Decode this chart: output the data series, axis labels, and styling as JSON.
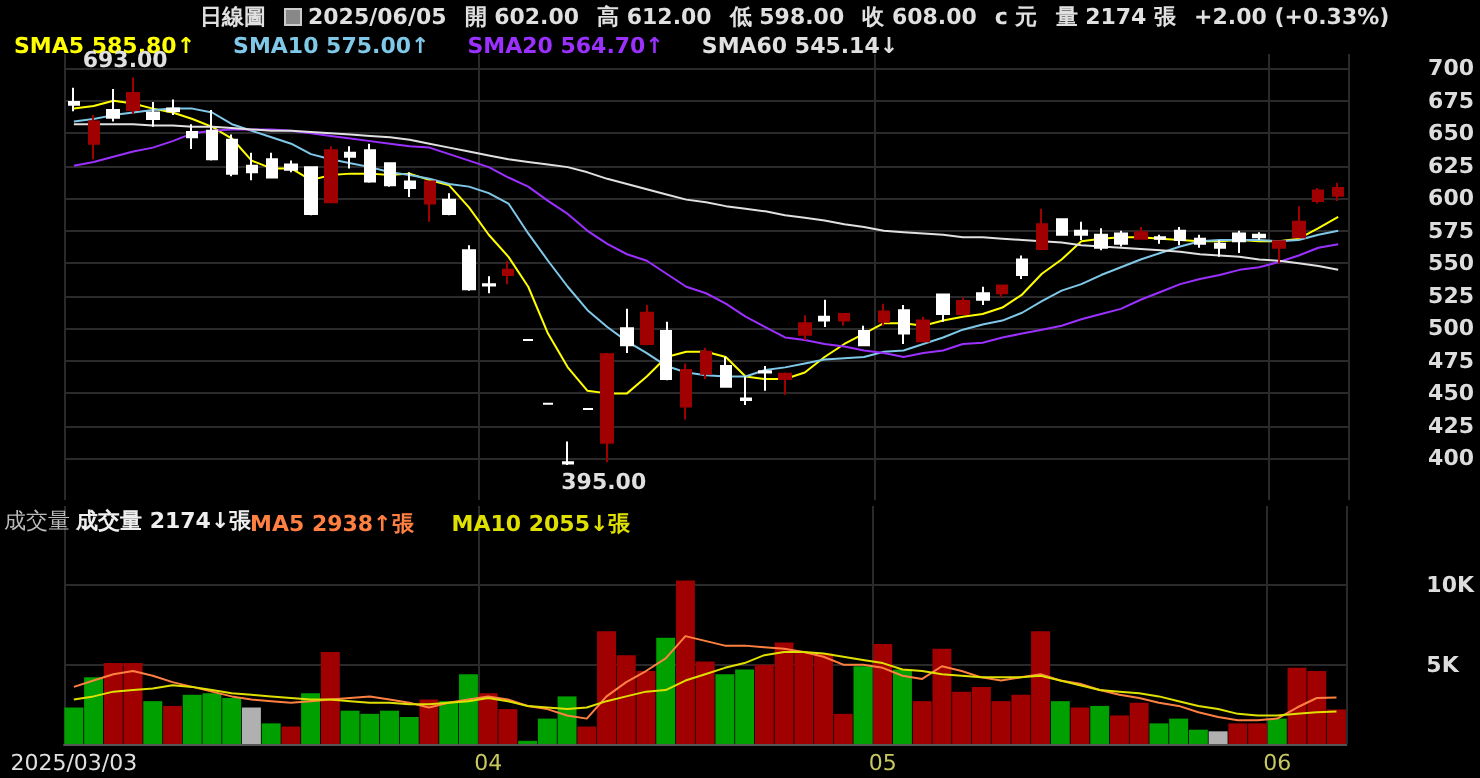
{
  "chart_data": [
    {
      "type": "candlestick",
      "tick_labels": "y",
      "grid": true,
      "legend": "top left",
      "marker": "none",
      "line_style": "solid",
      "categories": [
        "2025/03/03",
        null,
        null,
        null,
        null,
        null,
        null,
        null,
        null,
        null,
        null,
        null,
        null,
        null,
        null,
        null,
        null,
        null,
        null,
        null,
        null,
        "04",
        null,
        null,
        null,
        null,
        null,
        null,
        null,
        null,
        null,
        null,
        null,
        null,
        null,
        null,
        null,
        null,
        null,
        null,
        null,
        "05",
        null,
        null,
        null,
        null,
        null,
        null,
        null,
        null,
        null,
        null,
        null,
        null,
        null,
        null,
        null,
        null,
        null,
        null,
        null,
        "06",
        null,
        null,
        null
      ],
      "ylim": [
        368,
        711
      ],
      "yticks": [
        400,
        425,
        450,
        475,
        500,
        525,
        550,
        575,
        600,
        625,
        650,
        675,
        700
      ],
      "annotations": [
        "日線圖",
        "2025/06/05",
        "開 602.00",
        "高 612.00",
        "低 598.00",
        "收 608.00",
        "c 元",
        "量 2174 張",
        "+2.00 (+0.33%)",
        {
          "text": "693.00",
          "y": 693
        },
        {
          "text": "395.00",
          "y": 395
        }
      ],
      "ohlc": [
        [
          674,
          685,
          667,
          672
        ],
        [
          642,
          664,
          630,
          659
        ],
        [
          668,
          684,
          659,
          662
        ],
        [
          668,
          693,
          665,
          681
        ],
        [
          666,
          674,
          655,
          661
        ],
        [
          669,
          676,
          664,
          667
        ],
        [
          651,
          657,
          638,
          647
        ],
        [
          652,
          668,
          629,
          630
        ],
        [
          645,
          649,
          617,
          619
        ],
        [
          625,
          635,
          614,
          620
        ],
        [
          630,
          635,
          616,
          616
        ],
        [
          626,
          629,
          620,
          622
        ],
        [
          624,
          624,
          587,
          588
        ],
        [
          597,
          640,
          597,
          637
        ],
        [
          635,
          640,
          623,
          632
        ],
        [
          637,
          642,
          612,
          613
        ],
        [
          627,
          627,
          609,
          610
        ],
        [
          613,
          620,
          601,
          608
        ],
        [
          596,
          613,
          582,
          613
        ],
        [
          599,
          604,
          587,
          588
        ],
        [
          560,
          564,
          529,
          530
        ],
        [
          534,
          540,
          527,
          533
        ],
        [
          541,
          552,
          534,
          545
        ],
        [
          491,
          491,
          491,
          491
        ],
        [
          442,
          442,
          442,
          442
        ],
        [
          397,
          413,
          395,
          396
        ],
        [
          438,
          438,
          438,
          438
        ],
        [
          412,
          481,
          397,
          480
        ],
        [
          500,
          515,
          481,
          487
        ],
        [
          488,
          518,
          487,
          512
        ],
        [
          498,
          505,
          460,
          461
        ],
        [
          440,
          473,
          430,
          468
        ],
        [
          465,
          485,
          461,
          482
        ],
        [
          471,
          478,
          455,
          455
        ],
        [
          446,
          463,
          441,
          445
        ],
        [
          467,
          471,
          452,
          466
        ],
        [
          461,
          466,
          449,
          465
        ],
        [
          495,
          510,
          491,
          504
        ],
        [
          509,
          522,
          501,
          506
        ],
        [
          506,
          511,
          502,
          511
        ],
        [
          498,
          502,
          487,
          487
        ],
        [
          505,
          519,
          502,
          513
        ],
        [
          514,
          518,
          488,
          496
        ],
        [
          490,
          509,
          490,
          506
        ],
        [
          526,
          526,
          505,
          511
        ],
        [
          511,
          524,
          510,
          521
        ],
        [
          527,
          532,
          518,
          522
        ],
        [
          527,
          533,
          524,
          533
        ],
        [
          553,
          556,
          538,
          541
        ],
        [
          561,
          592,
          560,
          580
        ],
        [
          584,
          584,
          572,
          572
        ],
        [
          575,
          582,
          568,
          572
        ],
        [
          572,
          577,
          560,
          562
        ],
        [
          573,
          575,
          563,
          565
        ],
        [
          569,
          578,
          569,
          574
        ],
        [
          570,
          572,
          565,
          569
        ],
        [
          575,
          578,
          564,
          568
        ],
        [
          569,
          572,
          562,
          565
        ],
        [
          565,
          568,
          555,
          562
        ],
        [
          573,
          575,
          558,
          567
        ],
        [
          572,
          574,
          568,
          570
        ],
        [
          562,
          567,
          550,
          567
        ],
        [
          570,
          594,
          570,
          582
        ],
        [
          598,
          608,
          596,
          606
        ],
        [
          602,
          612,
          598,
          608
        ]
      ],
      "colors": [
        "#ffffff",
        "#a00000",
        "#ffffff",
        "#a00000",
        "#ffffff",
        "#ffffff",
        "#ffffff",
        "#ffffff",
        "#ffffff",
        "#ffffff",
        "#ffffff",
        "#ffffff",
        "#ffffff",
        "#a00000",
        "#ffffff",
        "#ffffff",
        "#ffffff",
        "#ffffff",
        "#a00000",
        "#ffffff",
        "#ffffff",
        "#ffffff",
        "#a00000",
        "#ffffff",
        "#ffffff",
        "#ffffff",
        "#ffffff",
        "#a00000",
        "#ffffff",
        "#a00000",
        "#ffffff",
        "#a00000",
        "#a00000",
        "#ffffff",
        "#ffffff",
        "#ffffff",
        "#a00000",
        "#a00000",
        "#ffffff",
        "#a00000",
        "#ffffff",
        "#a00000",
        "#ffffff",
        "#a00000",
        "#ffffff",
        "#a00000",
        "#ffffff",
        "#a00000",
        "#ffffff",
        "#a00000",
        "#ffffff",
        "#ffffff",
        "#ffffff",
        "#ffffff",
        "#a00000",
        "#ffffff",
        "#ffffff",
        "#ffffff",
        "#ffffff",
        "#ffffff",
        "#ffffff",
        "#a00000",
        "#a00000",
        "#a00000",
        "#a00000"
      ],
      "series": [
        {
          "type": "line",
          "name": "SMA5 585.80↑",
          "color": "#ffff00",
          "values": [
            669,
            671,
            675,
            673,
            669,
            666,
            661,
            655,
            646,
            629,
            623,
            623,
            614,
            618,
            619,
            619,
            618,
            619,
            614,
            610,
            593,
            572,
            555,
            532,
            496,
            470,
            452,
            450,
            450,
            463,
            478,
            482,
            482,
            478,
            463,
            461,
            461,
            466,
            478,
            488,
            496,
            504,
            504,
            502,
            506,
            509,
            511,
            516,
            526,
            542,
            553,
            567,
            569,
            570,
            570,
            569,
            568,
            567,
            567,
            568,
            567,
            567,
            569,
            577,
            585.8
          ]
        },
        {
          "type": "line",
          "name": "SMA10 575.00↑",
          "color": "#7fc8e8",
          "values": [
            659,
            661,
            664,
            666,
            668,
            669,
            669,
            666,
            657,
            652,
            647,
            642,
            634,
            630,
            627,
            624,
            620,
            618,
            615,
            611,
            609,
            604,
            596,
            573,
            552,
            532,
            514,
            501,
            490,
            481,
            471,
            466,
            464,
            463,
            463,
            468,
            470,
            473,
            476,
            477,
            478,
            482,
            483,
            488,
            493,
            499,
            503,
            506,
            512,
            521,
            529,
            534,
            541,
            547,
            553,
            558,
            563,
            567,
            568,
            568,
            568,
            567,
            568,
            572,
            575
          ]
        },
        {
          "type": "line",
          "name": "SMA20 564.70↑",
          "color": "#9b30ff",
          "values": [
            625,
            628,
            632,
            636,
            639,
            644,
            650,
            652,
            653,
            653,
            653,
            652,
            650,
            648,
            646,
            644,
            642,
            640,
            639,
            634,
            629,
            624,
            616,
            609,
            598,
            588,
            575,
            565,
            557,
            552,
            542,
            532,
            527,
            519,
            509,
            501,
            493,
            491,
            488,
            486,
            483,
            481,
            478,
            481,
            483,
            488,
            489,
            493,
            496,
            499,
            502,
            507,
            511,
            515,
            522,
            528,
            534,
            538,
            541,
            545,
            547,
            551,
            556,
            562,
            564.7
          ]
        },
        {
          "type": "line",
          "name": "SMA60 545.14↓",
          "color": "#e0e0e0",
          "values": [
            657,
            657,
            657,
            657,
            656,
            656,
            655,
            655,
            654,
            653,
            652,
            652,
            651,
            650,
            649,
            648,
            647,
            645,
            642,
            639,
            636,
            633,
            630,
            628,
            626,
            624,
            620,
            615,
            611,
            607,
            603,
            599,
            597,
            594,
            592,
            590,
            587,
            585,
            583,
            580,
            578,
            575,
            574,
            573,
            572,
            570,
            570,
            569,
            568,
            567,
            566,
            564,
            563,
            562,
            561,
            560,
            559,
            557,
            556,
            555,
            553,
            552,
            550,
            548,
            545.14
          ]
        }
      ]
    },
    {
      "type": "bar",
      "title": "成交量",
      "annotations": [
        "成交量 2174↓張"
      ],
      "grid": true,
      "legend": "top left",
      "marker": "none",
      "line_style": "solid",
      "categories": [
        "2025/03/03",
        null,
        null,
        null,
        null,
        null,
        null,
        null,
        null,
        null,
        null,
        null,
        null,
        null,
        null,
        null,
        null,
        null,
        null,
        null,
        null,
        "04",
        null,
        null,
        null,
        null,
        null,
        null,
        null,
        null,
        null,
        null,
        null,
        null,
        null,
        null,
        null,
        null,
        null,
        null,
        null,
        "05",
        null,
        null,
        null,
        null,
        null,
        null,
        null,
        null,
        null,
        null,
        null,
        null,
        null,
        null,
        null,
        null,
        null,
        null,
        null,
        "06",
        null,
        null,
        null
      ],
      "ylim": [
        0,
        15000
      ],
      "yticks": [
        {
          "value": 5000,
          "label": "5K"
        },
        {
          "value": 10000,
          "label": "10K"
        }
      ],
      "series": [
        {
          "type": "bar",
          "color": "#a00000",
          "values": [
            2300,
            4200,
            5100,
            5100,
            2700,
            2400,
            3100,
            3200,
            2900,
            2300,
            1300,
            1100,
            3200,
            5800,
            2100,
            1900,
            2100,
            1700,
            2800,
            2700,
            4400,
            3200,
            2200,
            200,
            1600,
            3000,
            1100,
            7100,
            5600,
            4600,
            6700,
            10300,
            5200,
            4400,
            4700,
            5000,
            6400,
            5800,
            5700,
            1900,
            4900,
            6300,
            4700,
            2700,
            6000,
            3300,
            3600,
            2700,
            3100,
            7100,
            2700,
            2300,
            2400,
            1800,
            2600,
            1300,
            1600,
            900,
            800,
            1300,
            1300,
            1600,
            4800,
            4600,
            2174
          ],
          "colors": [
            "#00a000",
            "#00a000",
            "#a00000",
            "#a00000",
            "#00a000",
            "#a00000",
            "#00a000",
            "#00a000",
            "#00a000",
            "#b0b0b0",
            "#00a000",
            "#a00000",
            "#00a000",
            "#a00000",
            "#00a000",
            "#00a000",
            "#00a000",
            "#00a000",
            "#a00000",
            "#00a000",
            "#00a000",
            "#a00000",
            "#a00000",
            "#00a000",
            "#00a000",
            "#00a000",
            "#a00000",
            "#a00000",
            "#a00000",
            "#a00000",
            "#00a000",
            "#a00000",
            "#a00000",
            "#00a000",
            "#00a000",
            "#a00000",
            "#a00000",
            "#a00000",
            "#a00000",
            "#a00000",
            "#00a000",
            "#a00000",
            "#00a000",
            "#a00000",
            "#a00000",
            "#a00000",
            "#a00000",
            "#a00000",
            "#a00000",
            "#a00000",
            "#00a000",
            "#a00000",
            "#00a000",
            "#a00000",
            "#a00000",
            "#00a000",
            "#00a000",
            "#00a000",
            "#b0b0b0",
            "#a00000",
            "#a00000",
            "#00a000",
            "#a00000",
            "#a00000",
            "#a00000"
          ]
        },
        {
          "type": "line",
          "name": "MA5 2938↑張",
          "color": "#ff8040",
          "values": [
            3600,
            4000,
            4400,
            4600,
            4300,
            3900,
            3600,
            3300,
            3000,
            2800,
            2700,
            2600,
            2700,
            2800,
            2900,
            3000,
            2800,
            2600,
            2300,
            2600,
            2800,
            3000,
            2800,
            2400,
            2200,
            1800,
            1600,
            3000,
            3900,
            4600,
            5400,
            6800,
            6500,
            6200,
            6200,
            6100,
            6000,
            5800,
            5500,
            5000,
            5000,
            4800,
            4300,
            4100,
            4900,
            4600,
            4200,
            4000,
            4200,
            4400,
            4000,
            3800,
            3400,
            3100,
            2900,
            2600,
            2400,
            2000,
            1700,
            1500,
            1500,
            1600,
            2300,
            2900,
            2938
          ]
        },
        {
          "type": "line",
          "name": "MA10 2055↓張",
          "color": "#e0e000",
          "values": [
            2800,
            3000,
            3300,
            3400,
            3500,
            3700,
            3600,
            3400,
            3200,
            3100,
            3000,
            2900,
            2800,
            2800,
            2700,
            2600,
            2600,
            2500,
            2500,
            2600,
            2700,
            2900,
            2700,
            2400,
            2300,
            2200,
            2300,
            2700,
            3000,
            3300,
            3400,
            4000,
            4400,
            4800,
            5100,
            5600,
            5800,
            5800,
            5700,
            5500,
            5300,
            5100,
            4700,
            4600,
            4400,
            4300,
            4200,
            4200,
            4200,
            4300,
            4000,
            3700,
            3400,
            3300,
            3200,
            3000,
            2700,
            2400,
            2200,
            1900,
            1800,
            1800,
            1900,
            2000,
            2055
          ]
        }
      ]
    }
  ]
}
